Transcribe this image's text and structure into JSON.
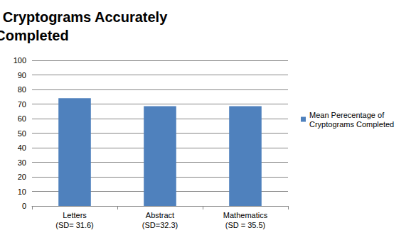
{
  "chart_data": {
    "type": "bar",
    "title": "Perecentage of Cryptograms Accurately\nCompleted",
    "categories": [
      "Letters\n(SD= 31.6)",
      "Abstract\n(SD=32.3)",
      "Mathematics\n(SD = 35.5)"
    ],
    "series": [
      {
        "name": "Mean Perecentage of\nCryptograms Completed",
        "color": "#4f81bd",
        "values": [
          74,
          68.5,
          68.5
        ]
      }
    ],
    "ylim": [
      0,
      100
    ],
    "yticks": [
      0,
      10,
      20,
      30,
      40,
      50,
      60,
      70,
      80,
      90,
      100
    ],
    "grid": true,
    "legend": "right"
  }
}
